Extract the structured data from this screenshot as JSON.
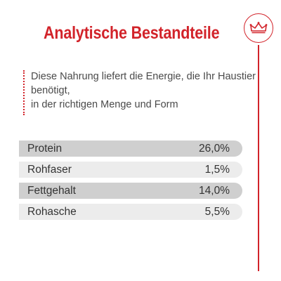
{
  "title": "Analytische Bestandteile",
  "colors": {
    "brand_red": "#d2232a",
    "row_dark": "#cfcfcf",
    "row_light": "#ececec"
  },
  "brand": {
    "icon": "crown-icon"
  },
  "intro": {
    "lines": [
      "Diese Nahrung liefert die Energie, die Ihr Haustier",
      "benötigt,",
      "in der richtigen Menge und Form"
    ]
  },
  "nutrients": [
    {
      "name": "Protein",
      "value": "26,0%",
      "shade": "dark"
    },
    {
      "name": "Rohfaser",
      "value": "1,5%",
      "shade": "light"
    },
    {
      "name": "Fettgehalt",
      "value": "14,0%",
      "shade": "dark"
    },
    {
      "name": "Rohasche",
      "value": "5,5%",
      "shade": "light"
    }
  ]
}
